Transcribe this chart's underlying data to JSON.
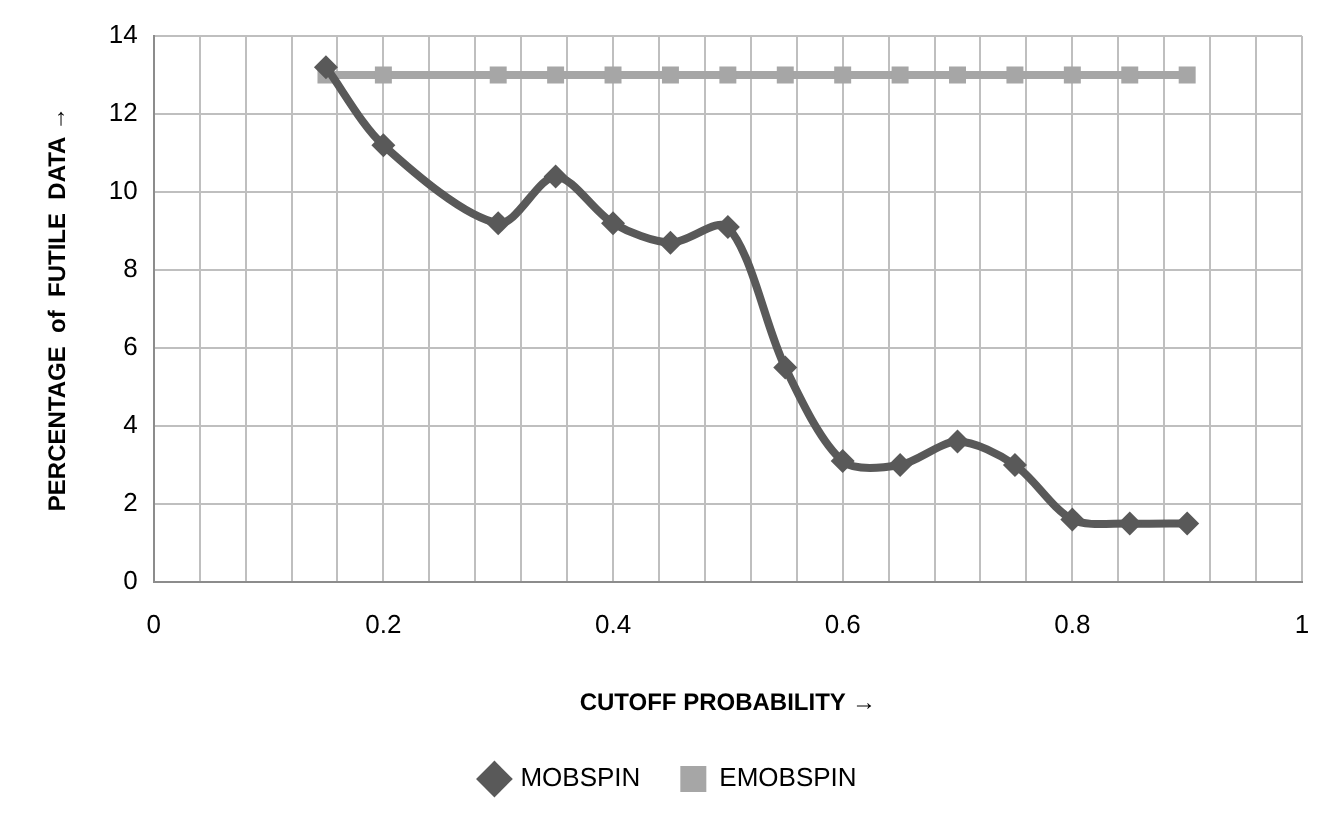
{
  "chart_data": {
    "type": "line",
    "xlabel": "CUTOFF PROBABILITY →",
    "ylabel": "PERCENTAGE  of  FUTILE  DATA →",
    "x": [
      0.15,
      0.2,
      0.3,
      0.35,
      0.4,
      0.45,
      0.5,
      0.55,
      0.6,
      0.65,
      0.7,
      0.75,
      0.8,
      0.85,
      0.9
    ],
    "series": [
      {
        "name": "MOBSPIN",
        "color": "#595959",
        "marker": "diamond",
        "values": [
          13.2,
          11.2,
          9.2,
          10.4,
          9.2,
          8.7,
          9.1,
          5.5,
          3.1,
          3.0,
          3.6,
          3.0,
          1.6,
          1.5,
          1.5
        ]
      },
      {
        "name": "EMOBSPIN",
        "color": "#a6a6a6",
        "marker": "square",
        "values": [
          13,
          13,
          13,
          13,
          13,
          13,
          13,
          13,
          13,
          13,
          13,
          13,
          13,
          13,
          13
        ]
      }
    ],
    "xlim": [
      0,
      1
    ],
    "xticks": [
      0,
      {
        "value": 0.04,
        "label": null
      },
      {
        "value": 0.08,
        "label": null
      },
      {
        "value": 0.12,
        "label": null
      },
      {
        "value": 0.16,
        "label": null
      },
      0.2,
      {
        "value": 0.24,
        "label": null
      },
      {
        "value": 0.28,
        "label": null
      },
      {
        "value": 0.32,
        "label": null
      },
      {
        "value": 0.36,
        "label": null
      },
      0.4,
      {
        "value": 0.44,
        "label": null
      },
      {
        "value": 0.48,
        "label": null
      },
      {
        "value": 0.52,
        "label": null
      },
      {
        "value": 0.56,
        "label": null
      },
      0.6,
      {
        "value": 0.64,
        "label": null
      },
      {
        "value": 0.68,
        "label": null
      },
      {
        "value": 0.72,
        "label": null
      },
      {
        "value": 0.76,
        "label": null
      },
      0.8,
      {
        "value": 0.84,
        "label": null
      },
      {
        "value": 0.88,
        "label": null
      },
      {
        "value": 0.92,
        "label": null
      },
      {
        "value": 0.96,
        "label": null
      },
      1
    ],
    "ylim": [
      0,
      14
    ],
    "yticks": [
      0,
      2,
      4,
      6,
      8,
      10,
      12,
      14
    ],
    "grid": true,
    "legend": "bottom",
    "line_style": "solid"
  }
}
